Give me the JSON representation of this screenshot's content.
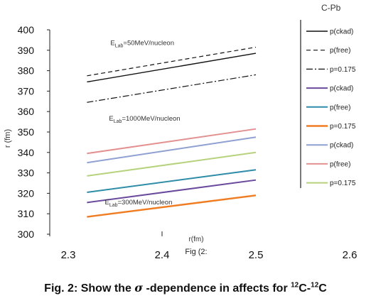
{
  "chart_data": {
    "type": "line",
    "title": "C-Pb",
    "ylabel": "r (fm)",
    "xlabel": "r(fm)",
    "xlim": [
      2.3,
      2.6
    ],
    "ylim": [
      300,
      400
    ],
    "x_ticks": [
      "2.3",
      "2.4",
      "2.5",
      "2.6"
    ],
    "y_ticks": [
      "300",
      "310",
      "320",
      "330",
      "340",
      "350",
      "360",
      "370",
      "380",
      "390",
      "400"
    ],
    "x": [
      2.32,
      2.5
    ],
    "series": [
      {
        "name": "p(ckad)",
        "values": [
          374.5,
          388.5
        ],
        "color": "#111111",
        "dash": "solid",
        "width": 1.4
      },
      {
        "name": "p(free)",
        "values": [
          377.5,
          391.5
        ],
        "color": "#111111",
        "dash": "6,4",
        "width": 1.2
      },
      {
        "name": "p=0.175",
        "values": [
          364.5,
          378.0
        ],
        "color": "#111111",
        "dash": "9,3,2,3",
        "width": 1.2
      },
      {
        "name": "p(ckad)",
        "values": [
          315.5,
          326.5
        ],
        "color": "#6a4a9c",
        "dash": "solid",
        "width": 2
      },
      {
        "name": "p(free)",
        "values": [
          320.5,
          331.5
        ],
        "color": "#2e8ca8",
        "dash": "solid",
        "width": 2
      },
      {
        "name": "p=0.175",
        "values": [
          308.5,
          319.0
        ],
        "color": "#f07c22",
        "dash": "solid",
        "width": 2.4
      },
      {
        "name": "p(ckad)",
        "values": [
          335.0,
          347.5
        ],
        "color": "#8fa0d2",
        "dash": "solid",
        "width": 2
      },
      {
        "name": "p(free)",
        "values": [
          339.5,
          351.5
        ],
        "color": "#e39090",
        "dash": "solid",
        "width": 2
      },
      {
        "name": "p=0.175",
        "values": [
          328.5,
          340.0
        ],
        "color": "#b7d27c",
        "dash": "solid",
        "width": 2
      }
    ],
    "annotations": [
      {
        "text": "E_Lab=50MeV/nucleon",
        "x": 2.345,
        "y": 392.5
      },
      {
        "text": "E_Lab=1000MeV/nucleon",
        "x": 2.3435,
        "y": 355.5
      },
      {
        "text": "E_Lab=300MeV/nucleon",
        "x": 2.339,
        "y": 314.5
      }
    ],
    "legend_position": "right",
    "grid": false
  },
  "caption": {
    "prefix": "Fig. 2: Show the ",
    "sigma": "σ",
    "middle": " -dependence in  affects for ",
    "sup1": "12",
    "text2": "C-",
    "sup2": "12",
    "text3": "C"
  },
  "fig_ref": "Fig (2:"
}
